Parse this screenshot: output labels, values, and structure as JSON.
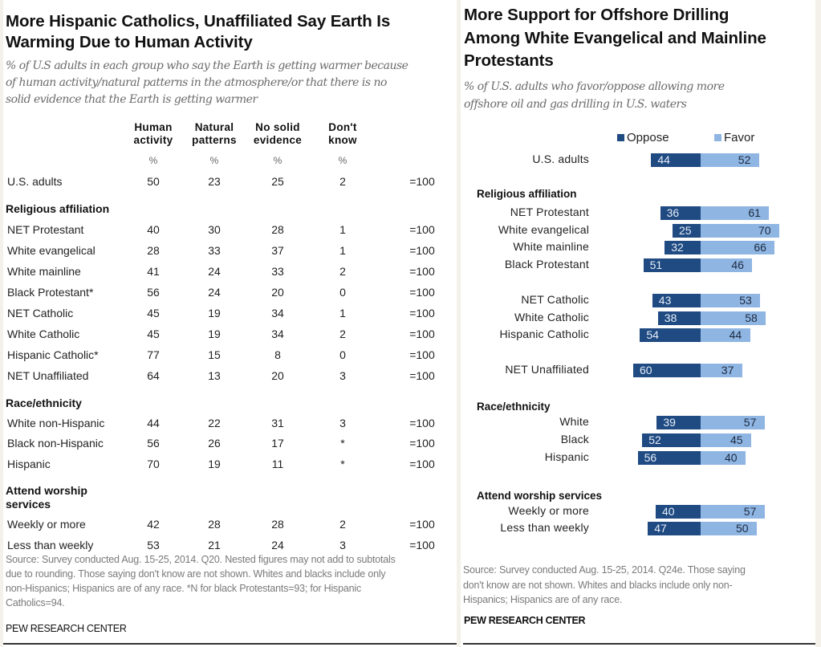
{
  "left": {
    "title_lines": [
      "More Hispanic Catholics, Unaffiliated Say Earth Is",
      "Warming Due to Human Activity"
    ],
    "subtitle_lines": [
      "% of U.S adults in each group who say the Earth is getting warmer because",
      "of human activity/natural patterns in the atmosphere/or that there is no",
      "solid evidence that the Earth is getting warmer"
    ],
    "columns": [
      {
        "line1": "Human",
        "line2": "activity",
        "unit": "%"
      },
      {
        "line1": "Natural",
        "line2": "patterns",
        "unit": "%"
      },
      {
        "line1": "No solid",
        "line2": "evidence",
        "unit": "%"
      },
      {
        "line1": "Don't",
        "line2": "know",
        "unit": "%"
      }
    ],
    "total_label": "=100",
    "rows": [
      {
        "type": "row",
        "label": "U.S. adults",
        "values": [
          "50",
          "23",
          "25",
          "2"
        ]
      },
      {
        "type": "section",
        "label": "Religious affiliation"
      },
      {
        "type": "row",
        "label": "NET Protestant",
        "values": [
          "40",
          "30",
          "28",
          "1"
        ]
      },
      {
        "type": "row",
        "label": "White evangelical",
        "values": [
          "28",
          "33",
          "37",
          "1"
        ]
      },
      {
        "type": "row",
        "label": "White mainline",
        "values": [
          "41",
          "24",
          "33",
          "2"
        ]
      },
      {
        "type": "row",
        "label": "Black Protestant*",
        "values": [
          "56",
          "24",
          "20",
          "0"
        ]
      },
      {
        "type": "row",
        "label": "NET Catholic",
        "values": [
          "45",
          "19",
          "34",
          "1"
        ]
      },
      {
        "type": "row",
        "label": "White Catholic",
        "values": [
          "45",
          "19",
          "34",
          "2"
        ]
      },
      {
        "type": "row",
        "label": "Hispanic Catholic*",
        "values": [
          "77",
          "15",
          "8",
          "0"
        ]
      },
      {
        "type": "row",
        "label": "NET Unaffiliated",
        "values": [
          "64",
          "13",
          "20",
          "3"
        ]
      },
      {
        "type": "section",
        "label": "Race/ethnicity"
      },
      {
        "type": "row",
        "label": "White non-Hispanic",
        "values": [
          "44",
          "22",
          "31",
          "3"
        ]
      },
      {
        "type": "row",
        "label": "Black non-Hispanic",
        "values": [
          "56",
          "26",
          "17",
          "*"
        ]
      },
      {
        "type": "row",
        "label": "Hispanic",
        "values": [
          "70",
          "19",
          "11",
          "*"
        ]
      },
      {
        "type": "section",
        "label": "Attend worship services"
      },
      {
        "type": "row",
        "label": "Weekly or more",
        "values": [
          "42",
          "28",
          "28",
          "2"
        ]
      },
      {
        "type": "row",
        "label": "Less than weekly",
        "values": [
          "53",
          "21",
          "24",
          "3"
        ]
      }
    ],
    "note_lines": [
      "Source: Survey conducted Aug. 15-25, 2014. Q20. Nested figures may not add to subtotals",
      "due to rounding. Those saying don't know are not shown. Whites and blacks include only",
      "non-Hispanics; Hispanics are of any race. *N for black Protestants=93; for Hispanic",
      "Catholics=94."
    ],
    "brand": "PEW RESEARCH CENTER"
  },
  "right": {
    "title_lines": [
      "More Support for Offshore Drilling",
      "Among White Evangelical and Mainline",
      "Protestants"
    ],
    "subtitle_lines": [
      "% of U.S. adults who favor/oppose allowing more",
      "offshore oil and gas drilling in U.S. waters"
    ],
    "legend": [
      {
        "label": "Oppose",
        "color": "#1f4a82"
      },
      {
        "label": "Favor",
        "color": "#8fb5e3"
      }
    ],
    "note_lines": [
      "Source: Survey conducted Aug. 15-25, 2014. Q24e. Those saying",
      "don't know are not shown. Whites and blacks include only non-",
      "Hispanics; Hispanics are of any race."
    ],
    "brand": "PEW RESEARCH CENTER"
  },
  "chart_data": [
    {
      "type": "table",
      "title": "More Hispanic Catholics, Unaffiliated Say Earth Is Warming Due to Human Activity",
      "columns": [
        "Human activity",
        "Natural patterns",
        "No solid evidence",
        "Don't know"
      ],
      "rows": [
        {
          "group": "U.S. adults",
          "values": [
            50,
            23,
            25,
            2
          ]
        },
        {
          "group": "NET Protestant",
          "section": "Religious affiliation",
          "values": [
            40,
            30,
            28,
            1
          ]
        },
        {
          "group": "White evangelical",
          "section": "Religious affiliation",
          "values": [
            28,
            33,
            37,
            1
          ]
        },
        {
          "group": "White mainline",
          "section": "Religious affiliation",
          "values": [
            41,
            24,
            33,
            2
          ]
        },
        {
          "group": "Black Protestant*",
          "section": "Religious affiliation",
          "values": [
            56,
            24,
            20,
            0
          ]
        },
        {
          "group": "NET Catholic",
          "section": "Religious affiliation",
          "values": [
            45,
            19,
            34,
            1
          ]
        },
        {
          "group": "White Catholic",
          "section": "Religious affiliation",
          "values": [
            45,
            19,
            34,
            2
          ]
        },
        {
          "group": "Hispanic Catholic*",
          "section": "Religious affiliation",
          "values": [
            77,
            15,
            8,
            0
          ]
        },
        {
          "group": "NET Unaffiliated",
          "section": "Religious affiliation",
          "values": [
            64,
            13,
            20,
            3
          ]
        },
        {
          "group": "White non-Hispanic",
          "section": "Race/ethnicity",
          "values": [
            44,
            22,
            31,
            3
          ]
        },
        {
          "group": "Black non-Hispanic",
          "section": "Race/ethnicity",
          "values": [
            56,
            26,
            17,
            "*"
          ]
        },
        {
          "group": "Hispanic",
          "section": "Race/ethnicity",
          "values": [
            70,
            19,
            11,
            "*"
          ]
        },
        {
          "group": "Weekly or more",
          "section": "Attend worship services",
          "values": [
            42,
            28,
            28,
            2
          ]
        },
        {
          "group": "Less than weekly",
          "section": "Attend worship services",
          "values": [
            53,
            21,
            24,
            3
          ]
        }
      ]
    },
    {
      "type": "bar",
      "orientation": "horizontal-diverging",
      "title": "More Support for Offshore Drilling Among White Evangelical and Mainline Protestants",
      "legend_position": "top",
      "series": [
        {
          "name": "Oppose",
          "color": "#1f4a82"
        },
        {
          "name": "Favor",
          "color": "#8fb5e3"
        }
      ],
      "groups": [
        {
          "section": "",
          "items": [
            {
              "label": "U.S. adults",
              "oppose": 44,
              "favor": 52
            }
          ]
        },
        {
          "section": "Religious affiliation",
          "items": [
            {
              "label": "NET Protestant",
              "oppose": 36,
              "favor": 61
            },
            {
              "label": "White evangelical",
              "oppose": 25,
              "favor": 70
            },
            {
              "label": "White mainline",
              "oppose": 32,
              "favor": 66
            },
            {
              "label": "Black Protestant",
              "oppose": 51,
              "favor": 46
            }
          ]
        },
        {
          "section": "",
          "items": [
            {
              "label": "NET Catholic",
              "oppose": 43,
              "favor": 53
            },
            {
              "label": "White Catholic",
              "oppose": 38,
              "favor": 58
            },
            {
              "label": "Hispanic Catholic",
              "oppose": 54,
              "favor": 44
            }
          ]
        },
        {
          "section": "",
          "items": [
            {
              "label": "NET Unaffiliated",
              "oppose": 60,
              "favor": 37
            }
          ]
        },
        {
          "section": "Race/ethnicity",
          "items": [
            {
              "label": "White",
              "oppose": 39,
              "favor": 57
            },
            {
              "label": "Black",
              "oppose": 52,
              "favor": 45
            },
            {
              "label": "Hispanic",
              "oppose": 56,
              "favor": 40
            }
          ]
        },
        {
          "section": "Attend worship services",
          "items": [
            {
              "label": "Weekly or more",
              "oppose": 40,
              "favor": 57
            },
            {
              "label": "Less than weekly",
              "oppose": 47,
              "favor": 50
            }
          ]
        }
      ]
    }
  ]
}
